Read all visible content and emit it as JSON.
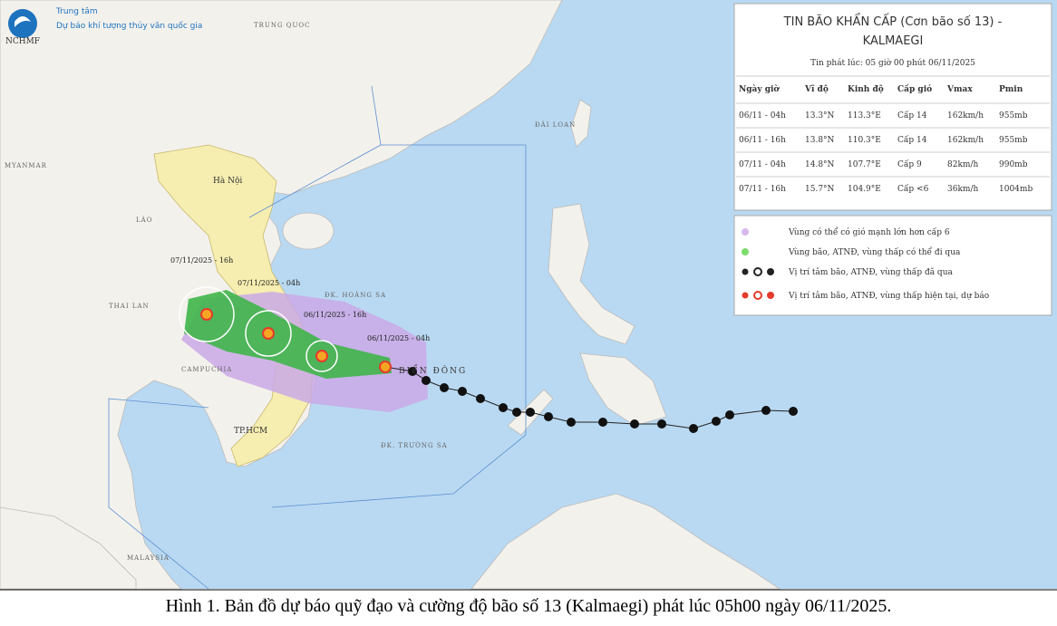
{
  "header": {
    "org_line1": "Trung tâm",
    "org_line2": "Dự báo khí tượng thủy văn quốc gia",
    "logo_text": "NCHMF"
  },
  "info_box": {
    "title_line1": "TIN BÃO KHẨN CẤP (Cơn bão số 13) -",
    "title_line2": "KALMAEGI",
    "issued": "Tin phát lúc: 05 giờ 00 phút 06/11/2025",
    "table": {
      "columns": [
        "Ngày giờ",
        "Vĩ độ",
        "Kinh độ",
        "Cấp gió",
        "Vmax",
        "Pmin"
      ],
      "rows": [
        [
          "06/11 - 04h",
          "13.3°N",
          "113.3°E",
          "Cấp 14",
          "162km/h",
          "955mb"
        ],
        [
          "06/11 - 16h",
          "13.8°N",
          "110.3°E",
          "Cấp 14",
          "162km/h",
          "955mb"
        ],
        [
          "07/11 - 04h",
          "14.8°N",
          "107.7°E",
          "Cấp 9",
          "82km/h",
          "990mb"
        ],
        [
          "07/11 - 16h",
          "15.7°N",
          "104.9°E",
          "Cấp <6",
          "36km/h",
          "1004mb"
        ]
      ]
    }
  },
  "legend": [
    "Vùng có thể có gió mạnh lớn hơn cấp 6",
    "Vùng bão, ATNĐ, vùng thấp có thể đi qua",
    "Vị trí tâm bão, ATNĐ, vùng thấp đã qua",
    "Vị trí tâm bão, ATNĐ, vùng thấp hiện tại, dự báo"
  ],
  "map_labels": {
    "china": "TRUNG QUOC",
    "hanoi": "Hà Nội",
    "laos": "LÀO",
    "thailand": "THAI LAN",
    "cambodia": "CAMPUCHIA",
    "hcm": "TP.HCM",
    "hoang_sa": "ĐK. HOÀNG SA",
    "bien_dong": "BIỂN ĐÔNG",
    "truong_sa": "ĐK. TRƯỜNG SA",
    "taiwan": "ĐÀI LOAN",
    "myanmar": "MYANMAR",
    "malaysia": "MALAYSIA"
  },
  "track_labels": [
    "07/11/2025 - 16h",
    "07/11/2025 - 04h",
    "06/11/2025 - 16h",
    "06/11/2025 - 04h"
  ],
  "caption": "Hình 1. Bản đồ dự báo quỹ đạo và cường độ bão số 13 (Kalmaegi) phát lúc 05h00 ngày 06/11/2025."
}
